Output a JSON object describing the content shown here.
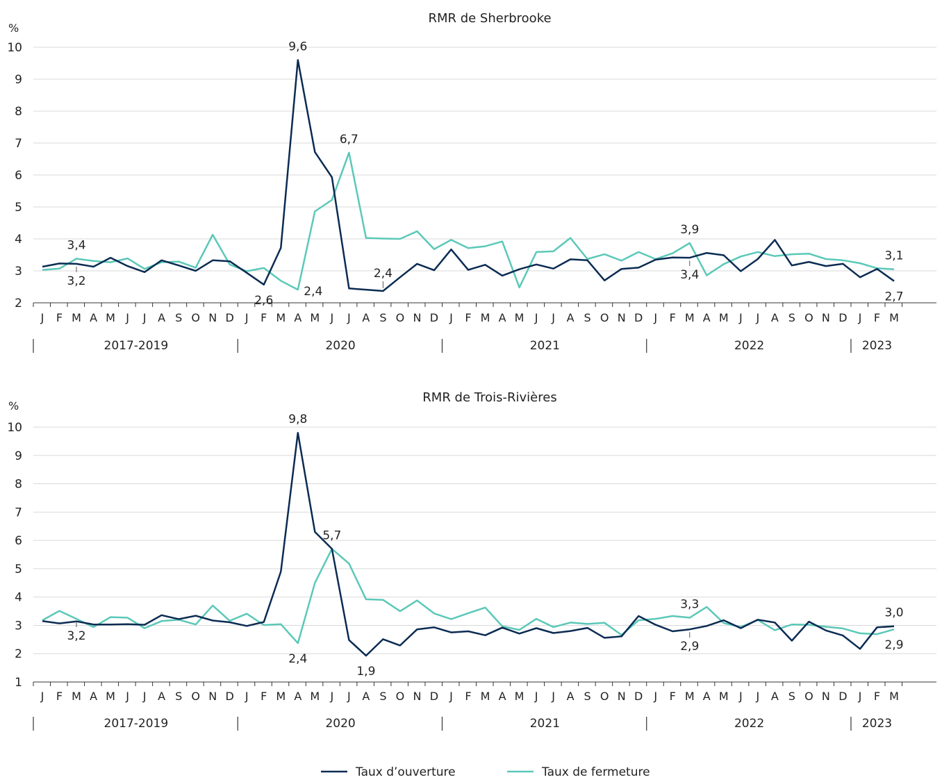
{
  "colors": {
    "opening": "#0b2b52",
    "closing": "#5bc8b8",
    "grid": "#d9d9d9",
    "axis": "#333333",
    "text": "#222222"
  },
  "x_labels": [
    "J",
    "F",
    "M",
    "A",
    "M",
    "J",
    "J",
    "A",
    "S",
    "O",
    "N",
    "D",
    "J",
    "F",
    "M",
    "A",
    "M",
    "J",
    "J",
    "A",
    "S",
    "O",
    "N",
    "D",
    "J",
    "F",
    "M",
    "A",
    "M",
    "J",
    "J",
    "A",
    "S",
    "O",
    "N",
    "D",
    "J",
    "F",
    "M",
    "A",
    "M",
    "J",
    "J",
    "A",
    "S",
    "O",
    "N",
    "D",
    "J",
    "F",
    "M"
  ],
  "year_groups": [
    {
      "label": "2017-2019",
      "start": 0,
      "end": 11
    },
    {
      "label": "2020",
      "start": 12,
      "end": 23
    },
    {
      "label": "2021",
      "start": 24,
      "end": 35
    },
    {
      "label": "2022",
      "start": 36,
      "end": 47
    },
    {
      "label": "2023",
      "start": 48,
      "end": 50
    }
  ],
  "legend": [
    {
      "name": "Taux d’ouverture",
      "color": "#0b2b52"
    },
    {
      "name": "Taux de fermeture",
      "color": "#5bc8b8"
    }
  ],
  "chart_data": [
    {
      "type": "line",
      "title": "RMR de Sherbrooke",
      "ylabel": "%",
      "ylim": [
        2,
        10
      ],
      "yticks": [
        2,
        3,
        4,
        5,
        6,
        7,
        8,
        9,
        10
      ],
      "grid": true,
      "series": [
        {
          "name": "Taux d’ouverture",
          "values": [
            3.13,
            3.23,
            3.22,
            3.13,
            3.41,
            3.15,
            2.96,
            3.33,
            3.17,
            3.0,
            3.33,
            3.3,
            2.94,
            2.57,
            3.72,
            9.6,
            6.72,
            5.93,
            2.45,
            2.41,
            2.37,
            2.8,
            3.22,
            3.02,
            3.67,
            3.03,
            3.19,
            2.85,
            3.05,
            3.2,
            3.07,
            3.36,
            3.33,
            2.7,
            3.06,
            3.1,
            3.35,
            3.42,
            3.41,
            3.56,
            3.49,
            2.99,
            3.37,
            3.97,
            3.17,
            3.28,
            3.15,
            3.22,
            2.8,
            3.06,
            2.68
          ]
        },
        {
          "name": "Taux de fermeture",
          "values": [
            3.03,
            3.07,
            3.38,
            3.31,
            3.27,
            3.39,
            3.06,
            3.27,
            3.29,
            3.1,
            4.13,
            3.2,
            2.99,
            3.09,
            2.69,
            2.41,
            4.86,
            5.22,
            6.7,
            4.03,
            4.01,
            4.0,
            4.24,
            3.68,
            3.97,
            3.71,
            3.77,
            3.92,
            2.48,
            3.59,
            3.61,
            4.03,
            3.37,
            3.52,
            3.32,
            3.59,
            3.37,
            3.55,
            3.87,
            2.86,
            3.21,
            3.45,
            3.59,
            3.46,
            3.52,
            3.54,
            3.37,
            3.33,
            3.24,
            3.08,
            3.05
          ]
        }
      ],
      "annotations": [
        {
          "text": "9,6",
          "index": 15,
          "series": 0,
          "pos": "above"
        },
        {
          "text": "6,7",
          "index": 18,
          "series": 1,
          "pos": "above"
        },
        {
          "text": "2,6",
          "index": 13,
          "series": 0,
          "pos": "below"
        },
        {
          "text": "2,4",
          "index": 15,
          "series": 1,
          "pos": "below-right"
        },
        {
          "text": "2,4",
          "index": 20,
          "series": 0,
          "pos": "above-leader"
        },
        {
          "text": "3,4",
          "index": 2,
          "series": 1,
          "pos": "above"
        },
        {
          "text": "3,2",
          "index": 2,
          "series": 0,
          "pos": "below-leader"
        },
        {
          "text": "3,9",
          "index": 38,
          "series": 1,
          "pos": "above"
        },
        {
          "text": "3,4",
          "index": 38,
          "series": 0,
          "pos": "below-leader"
        },
        {
          "text": "3,1",
          "index": 50,
          "series": 1,
          "pos": "above"
        },
        {
          "text": "2,7",
          "index": 50,
          "series": 0,
          "pos": "below"
        }
      ]
    },
    {
      "type": "line",
      "title": "RMR de Trois-Rivières",
      "ylabel": "%",
      "ylim": [
        1,
        10
      ],
      "yticks": [
        1,
        2,
        3,
        4,
        5,
        6,
        7,
        8,
        9,
        10
      ],
      "grid": true,
      "series": [
        {
          "name": "Taux d’ouverture",
          "values": [
            3.15,
            3.07,
            3.14,
            3.03,
            3.03,
            3.04,
            3.02,
            3.36,
            3.22,
            3.34,
            3.17,
            3.11,
            2.98,
            3.12,
            4.9,
            9.8,
            6.3,
            5.7,
            2.48,
            1.93,
            2.51,
            2.29,
            2.86,
            2.93,
            2.75,
            2.79,
            2.65,
            2.92,
            2.71,
            2.9,
            2.73,
            2.8,
            2.91,
            2.56,
            2.61,
            3.33,
            3.02,
            2.79,
            2.86,
            2.98,
            3.18,
            2.9,
            3.2,
            3.1,
            2.46,
            3.13,
            2.82,
            2.64,
            2.17,
            2.93,
            2.97
          ]
        },
        {
          "name": "Taux de fermeture",
          "values": [
            3.18,
            3.51,
            3.23,
            2.94,
            3.29,
            3.27,
            2.9,
            3.15,
            3.2,
            3.03,
            3.7,
            3.16,
            3.41,
            3.01,
            3.04,
            2.37,
            4.5,
            5.7,
            5.18,
            3.92,
            3.9,
            3.5,
            3.88,
            3.42,
            3.22,
            3.43,
            3.63,
            2.97,
            2.84,
            3.23,
            2.94,
            3.1,
            3.05,
            3.09,
            2.66,
            3.18,
            3.23,
            3.33,
            3.27,
            3.65,
            3.08,
            2.94,
            3.19,
            2.83,
            3.03,
            3.02,
            2.95,
            2.89,
            2.72,
            2.69,
            2.86
          ]
        }
      ],
      "annotations": [
        {
          "text": "9,8",
          "index": 15,
          "series": 0,
          "pos": "above"
        },
        {
          "text": "5,7",
          "index": 17,
          "series": 1,
          "pos": "above"
        },
        {
          "text": "2,4",
          "index": 15,
          "series": 1,
          "pos": "below"
        },
        {
          "text": "1,9",
          "index": 19,
          "series": 0,
          "pos": "below"
        },
        {
          "text": "3,2",
          "index": 2,
          "series": 1,
          "pos": "below-leader"
        },
        {
          "text": "3,3",
          "index": 38,
          "series": 1,
          "pos": "above"
        },
        {
          "text": "2,9",
          "index": 38,
          "series": 0,
          "pos": "below-leader"
        },
        {
          "text": "3,0",
          "index": 50,
          "series": 0,
          "pos": "above"
        },
        {
          "text": "2,9",
          "index": 50,
          "series": 1,
          "pos": "below"
        }
      ]
    }
  ]
}
